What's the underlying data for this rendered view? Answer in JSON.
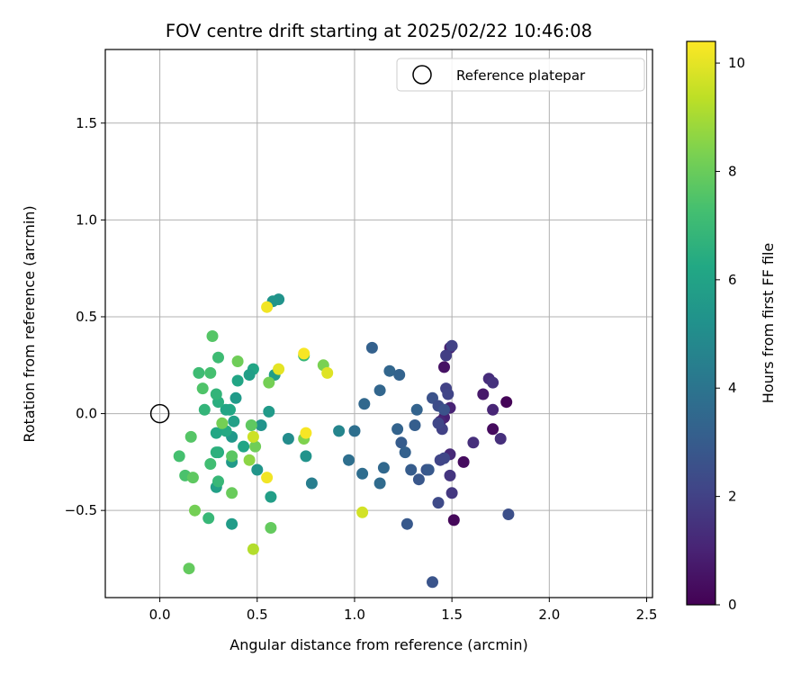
{
  "chart_data": {
    "type": "scatter",
    "title": "FOV centre drift starting at 2025/02/22 10:46:08",
    "xlabel": "Angular distance from reference (arcmin)",
    "ylabel": "Rotation from reference (arcmin)",
    "xlim": [
      -0.28,
      2.53
    ],
    "ylim": [
      -0.95,
      1.88
    ],
    "xticks": [
      "0.0",
      "0.5",
      "1.0",
      "1.5",
      "2.0",
      "2.5"
    ],
    "xtick_values": [
      0,
      0.5,
      1.0,
      1.5,
      2.0,
      2.5
    ],
    "yticks": [
      "−0.5",
      "0.0",
      "0.5",
      "1.0",
      "1.5"
    ],
    "ytick_values": [
      -0.5,
      0,
      0.5,
      1.0,
      1.5
    ],
    "grid": true,
    "legend": {
      "position": "top-right",
      "entries": [
        {
          "label": "Reference platepar",
          "marker": "open-circle"
        }
      ]
    },
    "reference_point": {
      "x": 0,
      "y": 0
    },
    "colorbar": {
      "label": "Hours from first FF file",
      "range": [
        0,
        10.4
      ],
      "ticks": [
        "0",
        "2",
        "4",
        "6",
        "8",
        "10"
      ],
      "tick_values": [
        0,
        2,
        4,
        6,
        8,
        10
      ],
      "colormap": "viridis"
    },
    "points": [
      {
        "x": 1.51,
        "y": -0.55,
        "c": 0.2
      },
      {
        "x": 1.46,
        "y": 0.24,
        "c": 0.5
      },
      {
        "x": 1.56,
        "y": -0.25,
        "c": 0.3
      },
      {
        "x": 1.78,
        "y": 0.06,
        "c": 0.1
      },
      {
        "x": 1.71,
        "y": -0.08,
        "c": 0.3
      },
      {
        "x": 1.66,
        "y": 0.1,
        "c": 0.7
      },
      {
        "x": 1.49,
        "y": 0.34,
        "c": 0.9
      },
      {
        "x": 1.46,
        "y": -0.02,
        "c": 0.9
      },
      {
        "x": 1.49,
        "y": 0.03,
        "c": 1.0
      },
      {
        "x": 1.44,
        "y": -0.04,
        "c": 1.1
      },
      {
        "x": 1.49,
        "y": -0.21,
        "c": 1.2
      },
      {
        "x": 1.71,
        "y": 0.02,
        "c": 1.1
      },
      {
        "x": 1.69,
        "y": 0.18,
        "c": 1.3
      },
      {
        "x": 1.71,
        "y": 0.16,
        "c": 1.5
      },
      {
        "x": 1.75,
        "y": -0.13,
        "c": 1.4
      },
      {
        "x": 1.61,
        "y": -0.15,
        "c": 1.4
      },
      {
        "x": 1.49,
        "y": -0.32,
        "c": 1.6
      },
      {
        "x": 1.5,
        "y": -0.41,
        "c": 1.7
      },
      {
        "x": 1.47,
        "y": 0.3,
        "c": 1.9
      },
      {
        "x": 1.5,
        "y": 0.35,
        "c": 2.0
      },
      {
        "x": 1.47,
        "y": 0.13,
        "c": 2.0
      },
      {
        "x": 1.48,
        "y": 0.1,
        "c": 2.1
      },
      {
        "x": 1.45,
        "y": -0.08,
        "c": 2.0
      },
      {
        "x": 1.43,
        "y": -0.05,
        "c": 2.2
      },
      {
        "x": 1.44,
        "y": -0.24,
        "c": 2.1
      },
      {
        "x": 1.46,
        "y": -0.23,
        "c": 2.2
      },
      {
        "x": 1.43,
        "y": -0.46,
        "c": 2.3
      },
      {
        "x": 1.79,
        "y": -0.52,
        "c": 2.5
      },
      {
        "x": 1.4,
        "y": 0.08,
        "c": 2.6
      },
      {
        "x": 1.43,
        "y": 0.04,
        "c": 2.4
      },
      {
        "x": 1.46,
        "y": 0.02,
        "c": 2.6
      },
      {
        "x": 1.37,
        "y": -0.29,
        "c": 2.7
      },
      {
        "x": 1.33,
        "y": -0.34,
        "c": 2.8
      },
      {
        "x": 1.38,
        "y": -0.29,
        "c": 2.9
      },
      {
        "x": 1.4,
        "y": -0.87,
        "c": 2.7
      },
      {
        "x": 1.27,
        "y": -0.57,
        "c": 2.9
      },
      {
        "x": 1.29,
        "y": -0.29,
        "c": 3.0
      },
      {
        "x": 1.24,
        "y": -0.15,
        "c": 3.0
      },
      {
        "x": 1.26,
        "y": -0.2,
        "c": 3.2
      },
      {
        "x": 1.31,
        "y": -0.06,
        "c": 3.1
      },
      {
        "x": 1.32,
        "y": 0.02,
        "c": 3.3
      },
      {
        "x": 1.22,
        "y": -0.08,
        "c": 3.3
      },
      {
        "x": 1.18,
        "y": 0.22,
        "c": 3.4
      },
      {
        "x": 1.23,
        "y": 0.2,
        "c": 3.3
      },
      {
        "x": 1.09,
        "y": 0.34,
        "c": 3.2
      },
      {
        "x": 1.13,
        "y": 0.12,
        "c": 3.4
      },
      {
        "x": 1.05,
        "y": 0.05,
        "c": 3.5
      },
      {
        "x": 1.15,
        "y": -0.28,
        "c": 3.5
      },
      {
        "x": 1.13,
        "y": -0.36,
        "c": 3.6
      },
      {
        "x": 1.04,
        "y": -0.31,
        "c": 3.7
      },
      {
        "x": 0.97,
        "y": -0.24,
        "c": 3.8
      },
      {
        "x": 1.0,
        "y": -0.09,
        "c": 3.8
      },
      {
        "x": 0.92,
        "y": -0.09,
        "c": 4.7
      },
      {
        "x": 0.78,
        "y": -0.36,
        "c": 4.4
      },
      {
        "x": 0.66,
        "y": -0.13,
        "c": 5.0
      },
      {
        "x": 0.75,
        "y": -0.22,
        "c": 5.3
      },
      {
        "x": 0.74,
        "y": 0.3,
        "c": 6.9
      },
      {
        "x": 0.61,
        "y": 0.59,
        "c": 5.3
      },
      {
        "x": 0.58,
        "y": 0.58,
        "c": 5.4
      },
      {
        "x": 0.56,
        "y": 0.01,
        "c": 5.6
      },
      {
        "x": 0.52,
        "y": -0.06,
        "c": 5.3
      },
      {
        "x": 0.5,
        "y": -0.29,
        "c": 5.4
      },
      {
        "x": 0.57,
        "y": -0.43,
        "c": 5.8
      },
      {
        "x": 0.59,
        "y": 0.2,
        "c": 5.8
      },
      {
        "x": 0.48,
        "y": 0.23,
        "c": 6.1
      },
      {
        "x": 0.46,
        "y": 0.2,
        "c": 5.8
      },
      {
        "x": 0.43,
        "y": -0.17,
        "c": 6.1
      },
      {
        "x": 0.38,
        "y": -0.04,
        "c": 5.9
      },
      {
        "x": 0.37,
        "y": -0.12,
        "c": 5.5
      },
      {
        "x": 0.37,
        "y": -0.25,
        "c": 5.6
      },
      {
        "x": 0.37,
        "y": -0.57,
        "c": 5.7
      },
      {
        "x": 0.39,
        "y": 0.08,
        "c": 5.6
      },
      {
        "x": 0.4,
        "y": 0.17,
        "c": 6.1
      },
      {
        "x": 0.36,
        "y": 0.02,
        "c": 6.2
      },
      {
        "x": 0.34,
        "y": 0.02,
        "c": 6.1
      },
      {
        "x": 0.34,
        "y": -0.09,
        "c": 6.3
      },
      {
        "x": 0.29,
        "y": -0.1,
        "c": 6.2
      },
      {
        "x": 0.29,
        "y": -0.38,
        "c": 5.9
      },
      {
        "x": 0.3,
        "y": -0.2,
        "c": 6.4
      },
      {
        "x": 0.29,
        "y": -0.2,
        "c": 6.6
      },
      {
        "x": 0.3,
        "y": -0.35,
        "c": 6.9
      },
      {
        "x": 0.3,
        "y": 0.06,
        "c": 6.5
      },
      {
        "x": 0.29,
        "y": 0.1,
        "c": 6.8
      },
      {
        "x": 0.3,
        "y": 0.29,
        "c": 7.1
      },
      {
        "x": 0.23,
        "y": 0.02,
        "c": 6.8
      },
      {
        "x": 0.25,
        "y": -0.54,
        "c": 6.9
      },
      {
        "x": 0.26,
        "y": -0.26,
        "c": 7.2
      },
      {
        "x": 0.2,
        "y": 0.21,
        "c": 7.1
      },
      {
        "x": 0.26,
        "y": 0.21,
        "c": 7.3
      },
      {
        "x": 0.22,
        "y": 0.13,
        "c": 7.5
      },
      {
        "x": 0.27,
        "y": 0.4,
        "c": 7.6
      },
      {
        "x": 0.1,
        "y": -0.22,
        "c": 7.3
      },
      {
        "x": 0.13,
        "y": -0.32,
        "c": 7.4
      },
      {
        "x": 0.16,
        "y": -0.12,
        "c": 7.6
      },
      {
        "x": 0.17,
        "y": -0.33,
        "c": 7.8
      },
      {
        "x": 0.15,
        "y": -0.8,
        "c": 7.9
      },
      {
        "x": 0.18,
        "y": -0.5,
        "c": 8.2
      },
      {
        "x": 0.37,
        "y": -0.22,
        "c": 7.7
      },
      {
        "x": 0.37,
        "y": -0.41,
        "c": 8.0
      },
      {
        "x": 0.4,
        "y": 0.27,
        "c": 8.1
      },
      {
        "x": 0.32,
        "y": -0.05,
        "c": 8.2
      },
      {
        "x": 0.47,
        "y": -0.06,
        "c": 7.8
      },
      {
        "x": 0.49,
        "y": -0.17,
        "c": 8.1
      },
      {
        "x": 0.46,
        "y": -0.24,
        "c": 8.6
      },
      {
        "x": 0.57,
        "y": -0.59,
        "c": 7.9
      },
      {
        "x": 0.56,
        "y": 0.16,
        "c": 8.2
      },
      {
        "x": 0.74,
        "y": -0.13,
        "c": 8.4
      },
      {
        "x": 0.84,
        "y": 0.25,
        "c": 8.3
      },
      {
        "x": 0.48,
        "y": -0.7,
        "c": 9.2
      },
      {
        "x": 0.48,
        "y": -0.12,
        "c": 9.6
      },
      {
        "x": 0.55,
        "y": -0.33,
        "c": 10.2
      },
      {
        "x": 0.61,
        "y": 0.23,
        "c": 10.0
      },
      {
        "x": 0.55,
        "y": 0.55,
        "c": 10.2
      },
      {
        "x": 0.74,
        "y": 0.31,
        "c": 10.3
      },
      {
        "x": 0.75,
        "y": -0.1,
        "c": 10.3
      },
      {
        "x": 0.86,
        "y": 0.21,
        "c": 9.9
      },
      {
        "x": 1.04,
        "y": -0.51,
        "c": 9.7
      }
    ]
  }
}
